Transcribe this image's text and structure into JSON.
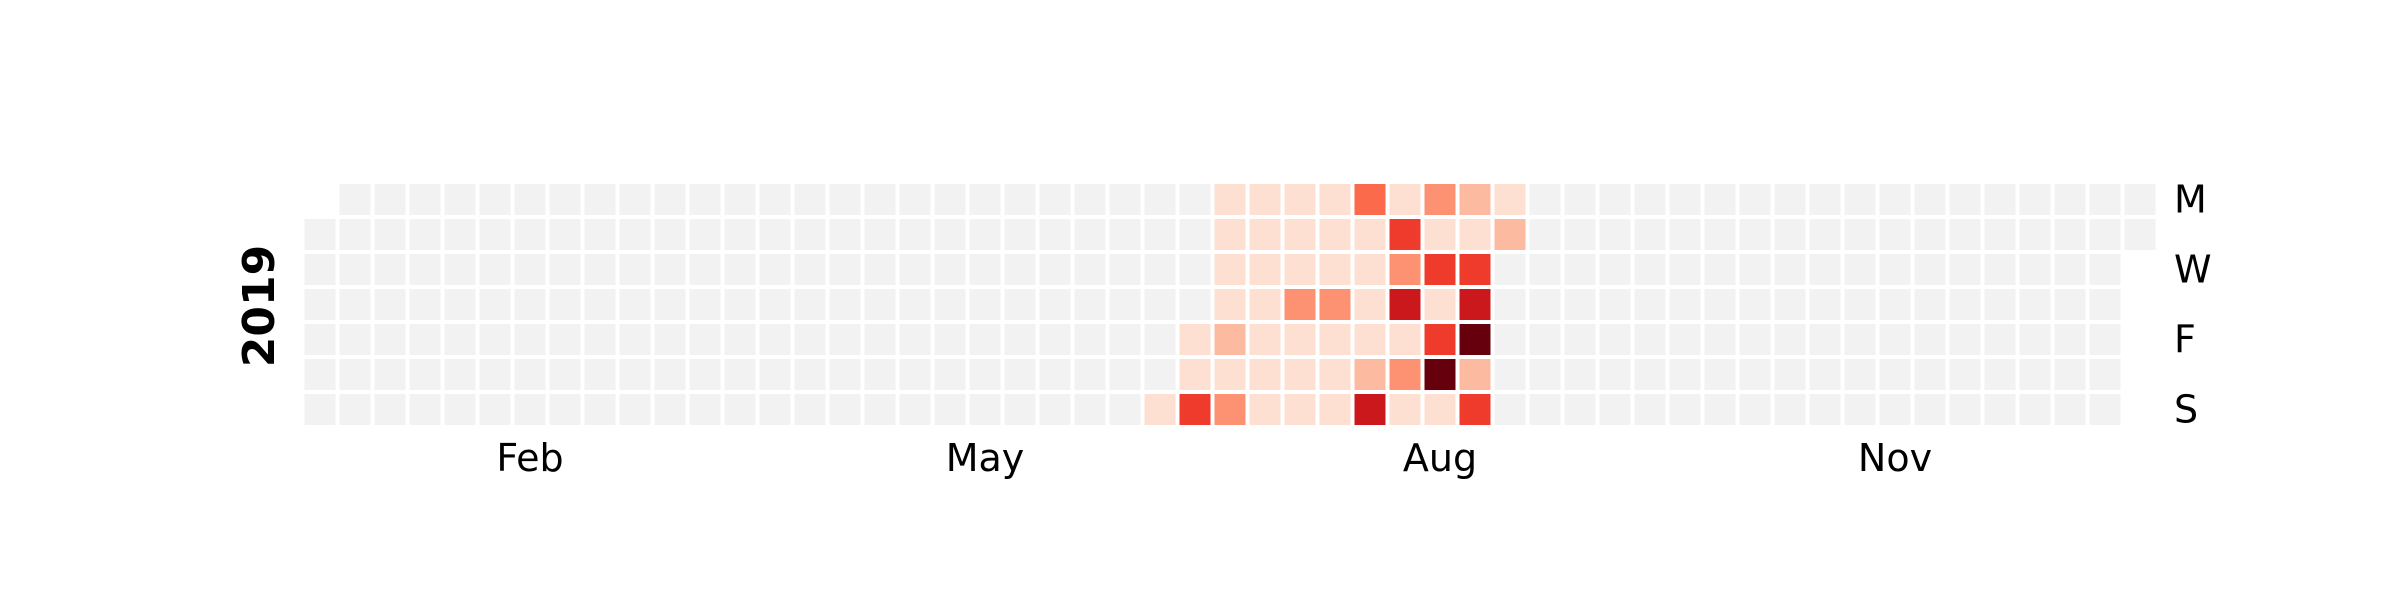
{
  "chart_data": {
    "type": "heatmap",
    "year": "2019",
    "first_weekday": "Tue",
    "month_labels": [
      {
        "label": "Feb",
        "week": 6
      },
      {
        "label": "May",
        "week": 19
      },
      {
        "label": "Aug",
        "week": 32
      },
      {
        "label": "Nov",
        "week": 45
      }
    ],
    "day_labels": [
      {
        "label": "M",
        "day": 0
      },
      {
        "label": "W",
        "day": 2
      },
      {
        "label": "F",
        "day": 4
      },
      {
        "label": "S",
        "day": 6
      }
    ],
    "values_by_date": {
      "2019-06-23": 1,
      "2019-06-28": 1,
      "2019-06-29": 1,
      "2019-06-30": 5,
      "2019-07-01": 1,
      "2019-07-02": 1,
      "2019-07-03": 1,
      "2019-07-04": 1,
      "2019-07-05": 2,
      "2019-07-06": 1,
      "2019-07-07": 3,
      "2019-07-08": 1,
      "2019-07-09": 1,
      "2019-07-10": 1,
      "2019-07-11": 1,
      "2019-07-12": 1,
      "2019-07-13": 1,
      "2019-07-14": 1,
      "2019-07-15": 1,
      "2019-07-16": 1,
      "2019-07-17": 1,
      "2019-07-18": 3,
      "2019-07-19": 1,
      "2019-07-20": 1,
      "2019-07-21": 1,
      "2019-07-22": 1,
      "2019-07-23": 1,
      "2019-07-24": 1,
      "2019-07-25": 3,
      "2019-07-26": 1,
      "2019-07-27": 1,
      "2019-07-28": 1,
      "2019-07-29": 4,
      "2019-07-30": 1,
      "2019-07-31": 1,
      "2019-08-01": 1,
      "2019-08-02": 1,
      "2019-08-03": 2,
      "2019-08-04": 6,
      "2019-08-05": 1,
      "2019-08-06": 5,
      "2019-08-07": 3,
      "2019-08-08": 6,
      "2019-08-09": 1,
      "2019-08-10": 3,
      "2019-08-11": 1,
      "2019-08-12": 3,
      "2019-08-13": 1,
      "2019-08-14": 5,
      "2019-08-15": 1,
      "2019-08-16": 5,
      "2019-08-17": 8,
      "2019-08-18": 1,
      "2019-08-19": 2,
      "2019-08-20": 1,
      "2019-08-21": 5,
      "2019-08-22": 6,
      "2019-08-23": 8,
      "2019-08-24": 2,
      "2019-08-25": 5,
      "2019-08-26": 1,
      "2019-08-27": 2
    },
    "value_range": [
      0,
      8
    ],
    "colormap": "Reds",
    "empty_color": "#f2f2f2",
    "grid": false,
    "legend": "none"
  }
}
